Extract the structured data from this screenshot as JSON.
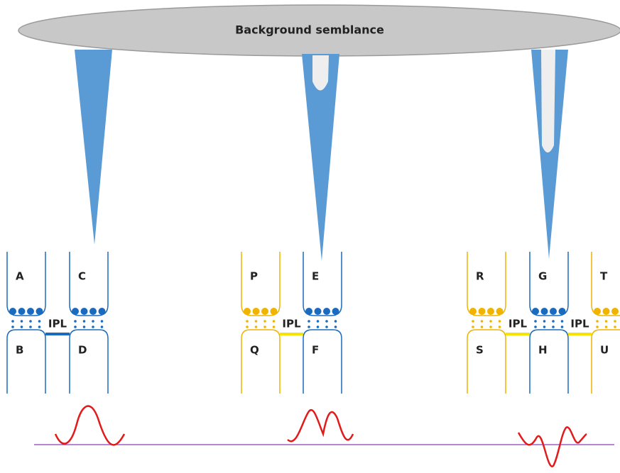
{
  "title": "Background semblance",
  "groups": [
    {
      "upper": [
        "A",
        "C"
      ],
      "lower": [
        "B",
        "D"
      ],
      "ipl": [
        "IPL"
      ]
    },
    {
      "upper": [
        "P",
        "E"
      ],
      "lower": [
        "Q",
        "F"
      ],
      "ipl": [
        "IPL"
      ]
    },
    {
      "upper": [
        "R",
        "G",
        "T"
      ],
      "lower": [
        "S",
        "H",
        "U"
      ],
      "ipl": [
        "IPL",
        "IPL"
      ]
    }
  ]
}
